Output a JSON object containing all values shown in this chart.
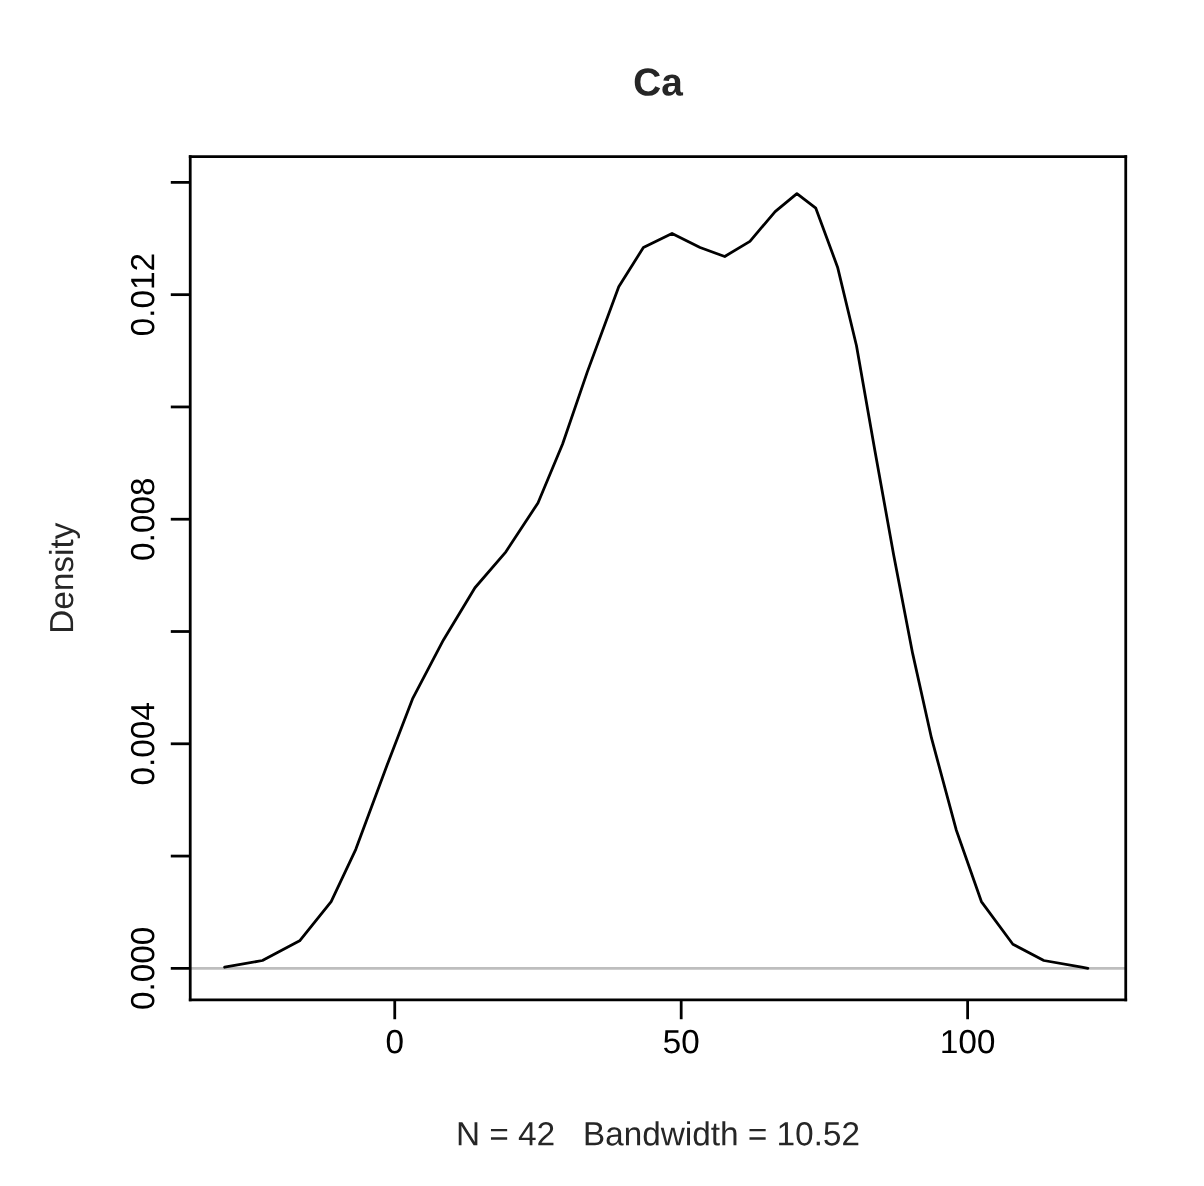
{
  "chart_data": {
    "type": "line",
    "title": "Ca",
    "xlabel": "N = 42   Bandwidth = 10.52",
    "ylabel": "Density",
    "series": [
      {
        "color": "#000000",
        "x": [
          -29.7,
          -23.1,
          -16.6,
          -11.1,
          -6.8,
          -1.3,
          3.1,
          8.5,
          14.0,
          19.4,
          25.0,
          29.3,
          33.6,
          39.1,
          43.4,
          48.4,
          53.3,
          57.6,
          62.0,
          66.4,
          70.2,
          73.5,
          77.3,
          80.6,
          83.8,
          87.1,
          90.4,
          93.7,
          98.0,
          102.4,
          107.9,
          113.3,
          119.9,
          121.0
        ],
        "values": [
          2e-05,
          0.00014,
          0.00049,
          0.00119,
          0.00212,
          0.00363,
          0.0048,
          0.00585,
          0.00678,
          0.00742,
          0.00829,
          0.00934,
          0.01062,
          0.01214,
          0.01284,
          0.01309,
          0.01284,
          0.01268,
          0.01295,
          0.01348,
          0.0138,
          0.01354,
          0.01249,
          0.01109,
          0.00923,
          0.00736,
          0.00561,
          0.0041,
          0.00247,
          0.00119,
          0.00043,
          0.00014,
          2e-05,
          0.0
        ]
      }
    ],
    "ref_lines": [
      {
        "axis": "y",
        "value": 0,
        "color": "#bebebe"
      }
    ],
    "xlim": [
      -35.7,
      127.6
    ],
    "xticks": [
      0,
      50,
      100
    ],
    "ylim": [
      -0.00056,
      0.01446
    ],
    "yticks": [
      {
        "value": 0,
        "label": "0.000"
      },
      {
        "value": 0.002,
        "label": null
      },
      {
        "value": 0.004,
        "label": "0.004"
      },
      {
        "value": 0.006,
        "label": null
      },
      {
        "value": 0.008,
        "label": "0.008"
      },
      {
        "value": 0.01,
        "label": null
      },
      {
        "value": 0.012,
        "label": "0.012"
      },
      {
        "value": 0.014,
        "label": null
      }
    ],
    "grid": false,
    "legend": false,
    "marker": "none",
    "line_style": "solid"
  }
}
